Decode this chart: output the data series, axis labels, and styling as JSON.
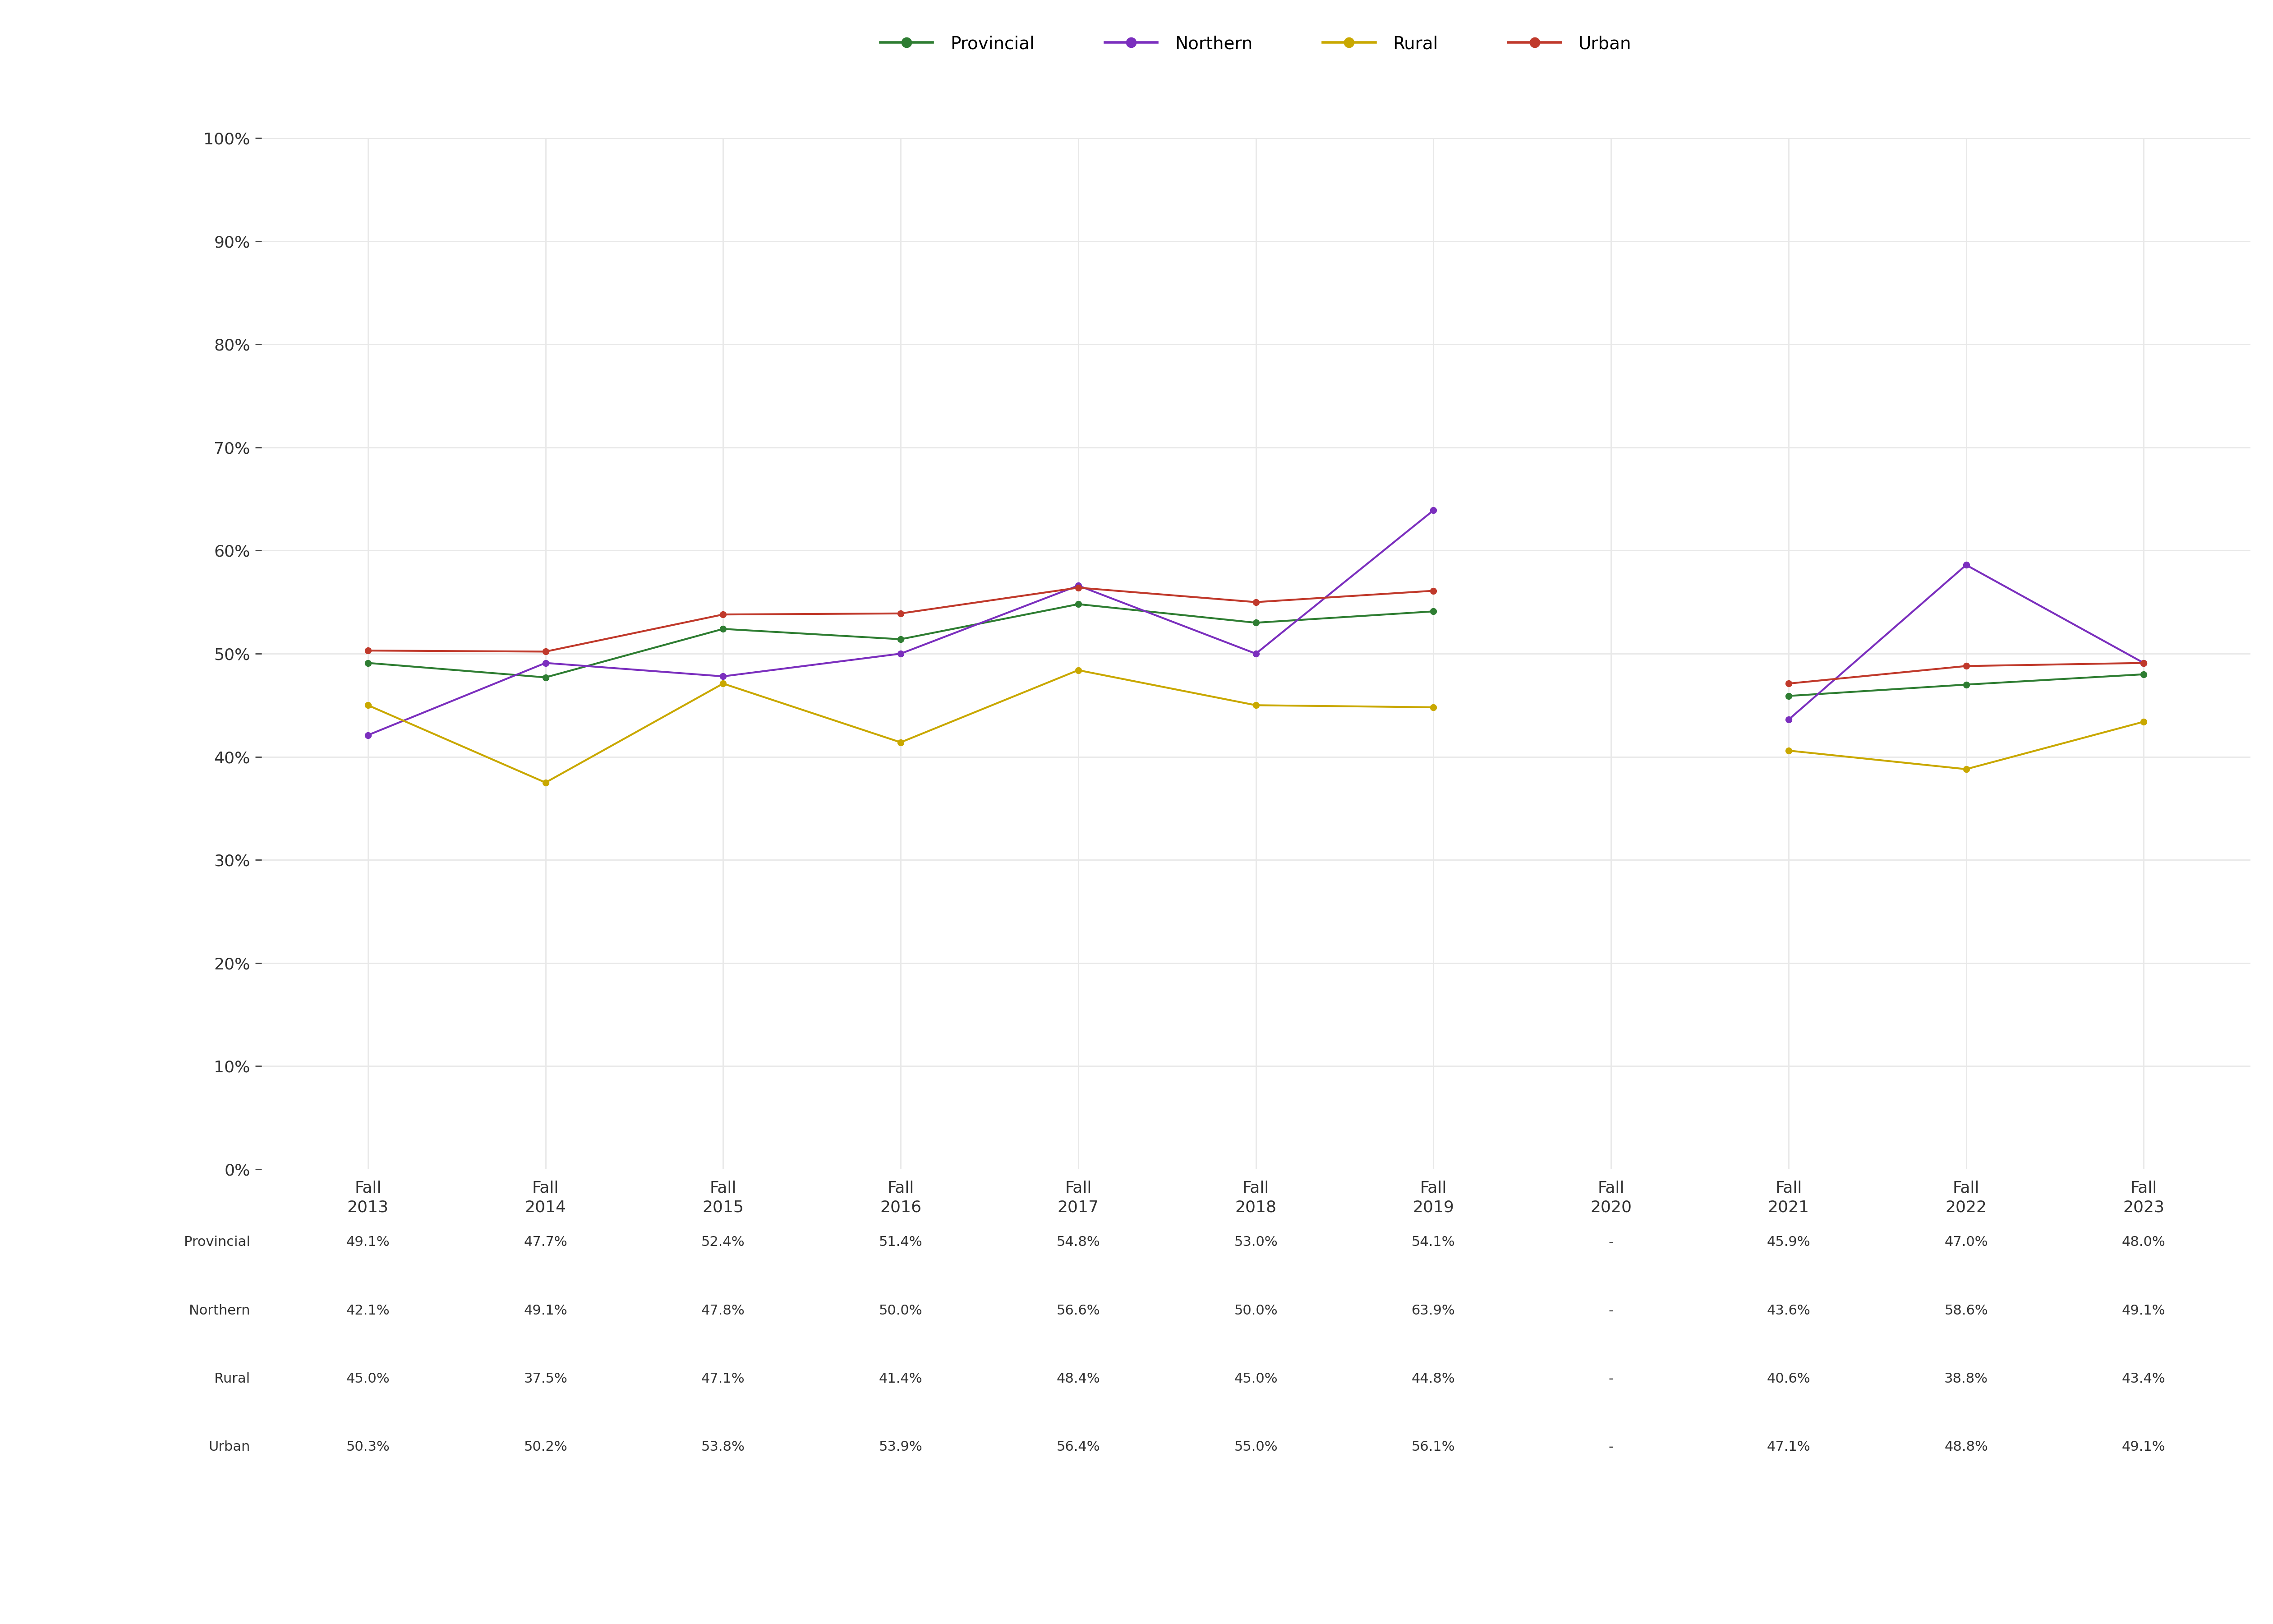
{
  "x_labels": [
    "Fall\n2013",
    "Fall\n2014",
    "Fall\n2015",
    "Fall\n2016",
    "Fall\n2017",
    "Fall\n2018",
    "Fall\n2019",
    "Fall\n2020",
    "Fall\n2021",
    "Fall\n2022",
    "Fall\n2023"
  ],
  "x_positions": [
    0,
    1,
    2,
    3,
    4,
    5,
    6,
    7,
    8,
    9,
    10
  ],
  "series": {
    "Provincial": {
      "color": "#2e7d32",
      "values": [
        49.1,
        47.7,
        52.4,
        51.4,
        54.8,
        53.0,
        54.1,
        null,
        45.9,
        47.0,
        48.0
      ]
    },
    "Northern": {
      "color": "#7b2fbe",
      "values": [
        42.1,
        49.1,
        47.8,
        50.0,
        56.6,
        50.0,
        63.9,
        null,
        43.6,
        58.6,
        49.1
      ]
    },
    "Rural": {
      "color": "#c9a800",
      "values": [
        45.0,
        37.5,
        47.1,
        41.4,
        48.4,
        45.0,
        44.8,
        null,
        40.6,
        38.8,
        43.4
      ]
    },
    "Urban": {
      "color": "#c0392b",
      "values": [
        50.3,
        50.2,
        53.8,
        53.9,
        56.4,
        55.0,
        56.1,
        null,
        47.1,
        48.8,
        49.1
      ]
    }
  },
  "table_data": {
    "Provincial": [
      "49.1%",
      "47.7%",
      "52.4%",
      "51.4%",
      "54.8%",
      "53.0%",
      "54.1%",
      "-",
      "45.9%",
      "47.0%",
      "48.0%"
    ],
    "Northern": [
      "42.1%",
      "49.1%",
      "47.8%",
      "50.0%",
      "56.6%",
      "50.0%",
      "63.9%",
      "-",
      "43.6%",
      "58.6%",
      "49.1%"
    ],
    "Rural": [
      "45.0%",
      "37.5%",
      "47.1%",
      "41.4%",
      "48.4%",
      "45.0%",
      "44.8%",
      "-",
      "40.6%",
      "38.8%",
      "43.4%"
    ],
    "Urban": [
      "50.3%",
      "50.2%",
      "53.8%",
      "53.9%",
      "56.4%",
      "55.0%",
      "56.1%",
      "-",
      "47.1%",
      "48.8%",
      "49.1%"
    ]
  },
  "ylim": [
    0,
    100
  ],
  "yticks": [
    0,
    10,
    20,
    30,
    40,
    50,
    60,
    70,
    80,
    90,
    100
  ],
  "background_color": "#ffffff",
  "grid_color": "#e8e8e8",
  "legend_order": [
    "Provincial",
    "Northern",
    "Rural",
    "Urban"
  ],
  "marker_size": 10,
  "line_width": 3.0,
  "tick_fontsize": 26,
  "table_fontsize": 22,
  "legend_fontsize": 28
}
